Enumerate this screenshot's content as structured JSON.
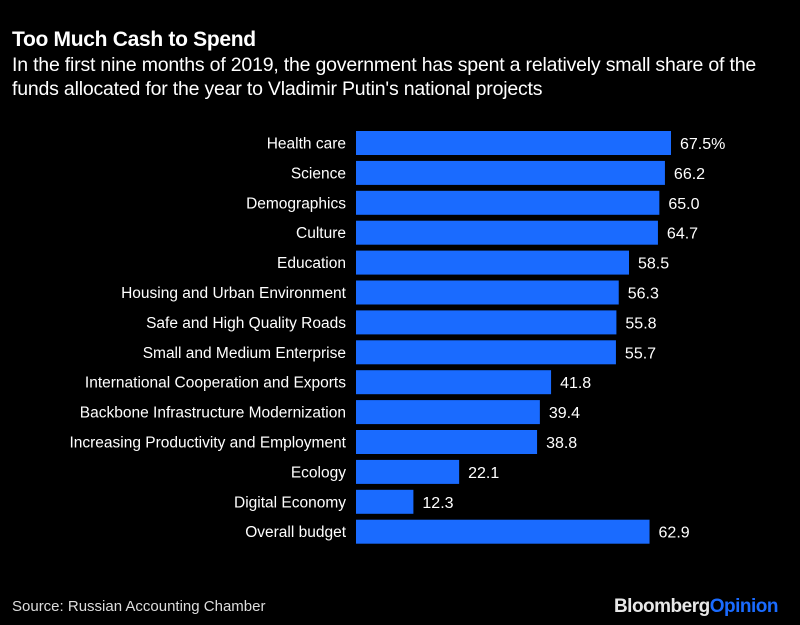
{
  "chart_data": {
    "type": "bar",
    "orientation": "horizontal",
    "title": "Too Much Cash to Spend",
    "subtitle": "In the first nine months of 2019, the government has spent a relatively small share of the funds allocated for the year to Vladimir Putin's national projects",
    "categories": [
      "Health care",
      "Science",
      "Demographics",
      "Culture",
      "Education",
      "Housing and Urban Environment",
      "Safe and High Quality Roads",
      "Small and Medium Enterprise",
      "International Cooperation and Exports",
      "Backbone Infrastructure Modernization",
      "Increasing Productivity and Employment",
      "Ecology",
      "Digital Economy",
      "Overall budget"
    ],
    "values": [
      67.5,
      66.2,
      65.0,
      64.7,
      58.5,
      56.3,
      55.8,
      55.7,
      41.8,
      39.4,
      38.8,
      22.1,
      12.3,
      62.9
    ],
    "value_labels": [
      "67.5%",
      "66.2",
      "65.0",
      "64.7",
      "58.5",
      "56.3",
      "55.8",
      "55.7",
      "41.8",
      "39.4",
      "38.8",
      "22.1",
      "12.3",
      "62.9"
    ],
    "unit": "%",
    "xlim": [
      0,
      67.5
    ],
    "grid": false,
    "bar_color": "#1a6bff"
  },
  "source": "Source: Russian Accounting Chamber",
  "logo": {
    "brand": "Bloomberg",
    "product": "Opinion"
  }
}
